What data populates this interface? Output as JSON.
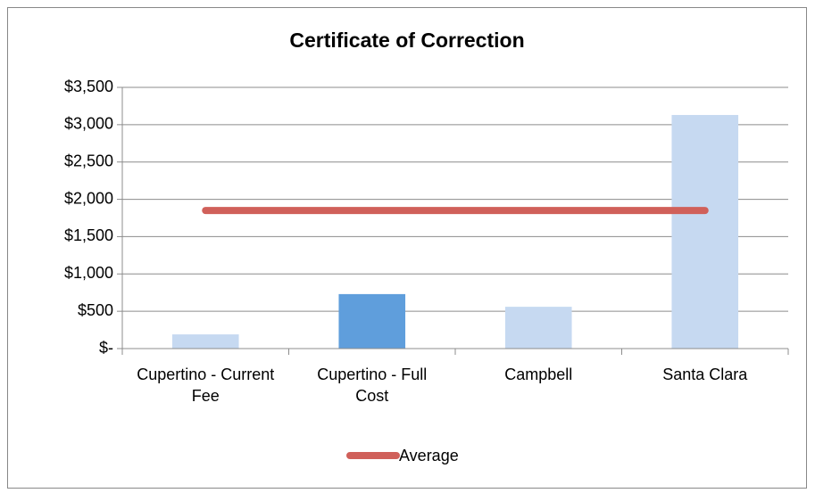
{
  "chart_data": {
    "type": "bar",
    "title": "Certificate of Correction",
    "categories": [
      "Cupertino - Current Fee",
      "Cupertino - Full Cost",
      "Campbell",
      "Santa Clara"
    ],
    "values": [
      190,
      730,
      560,
      3130
    ],
    "colors": [
      "#c6d9f1",
      "#5f9edc",
      "#c6d9f1",
      "#c6d9f1"
    ],
    "series": [
      {
        "name": "Average",
        "color": "#d0605a",
        "values": [
          1850,
          1850,
          1850,
          1850
        ]
      }
    ],
    "ylim": [
      0,
      3500
    ],
    "yticks": [
      {
        "value": 0,
        "label": "$-"
      },
      {
        "value": 500,
        "label": "$500"
      },
      {
        "value": 1000,
        "label": "$1,000"
      },
      {
        "value": 1500,
        "label": "$1,500"
      },
      {
        "value": 2000,
        "label": "$2,000"
      },
      {
        "value": 2500,
        "label": "$2,500"
      },
      {
        "value": 3000,
        "label": "$3,000"
      },
      {
        "value": 3500,
        "label": "$3,500"
      }
    ],
    "grid": true,
    "legend": "bottom"
  }
}
